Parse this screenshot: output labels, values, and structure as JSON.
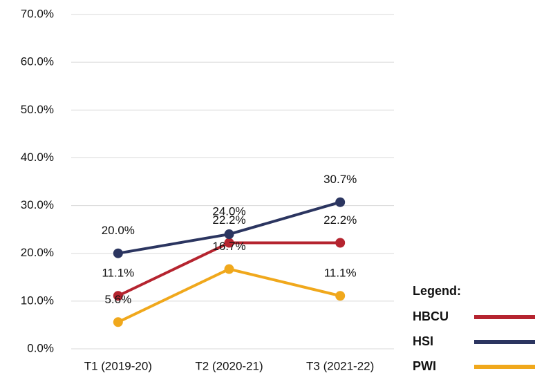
{
  "chart_data": {
    "type": "line",
    "categories": [
      "T1 (2019-20)",
      "T2 (2020-21)",
      "T3 (2021-22)"
    ],
    "series": [
      {
        "name": "HBCU",
        "color": "#b5242f",
        "values": [
          11.1,
          22.2,
          22.2
        ],
        "value_labels": [
          "11.1%",
          "22.2%",
          "22.2%"
        ]
      },
      {
        "name": "HSI",
        "color": "#2b3560",
        "values": [
          20.0,
          24.0,
          30.7
        ],
        "value_labels": [
          "20.0%",
          "24.0%",
          "30.7%"
        ]
      },
      {
        "name": "PWI",
        "color": "#f0a81c",
        "values": [
          5.6,
          16.7,
          11.1
        ],
        "value_labels": [
          "5.6%",
          "16.7%",
          "11.1%"
        ]
      }
    ],
    "ylim": [
      0,
      70
    ],
    "yticks": [
      {
        "value": 0,
        "label": "0.0%"
      },
      {
        "value": 10,
        "label": "10.0%"
      },
      {
        "value": 20,
        "label": "20.0%"
      },
      {
        "value": 30,
        "label": "30.0%"
      },
      {
        "value": 40,
        "label": "40.0%"
      },
      {
        "value": 50,
        "label": "50.0%"
      },
      {
        "value": 60,
        "label": "60.0%"
      },
      {
        "value": 70,
        "label": "70.0%"
      }
    ],
    "grid": true,
    "legend_title": "Legend:",
    "legend": "bottom-right"
  }
}
